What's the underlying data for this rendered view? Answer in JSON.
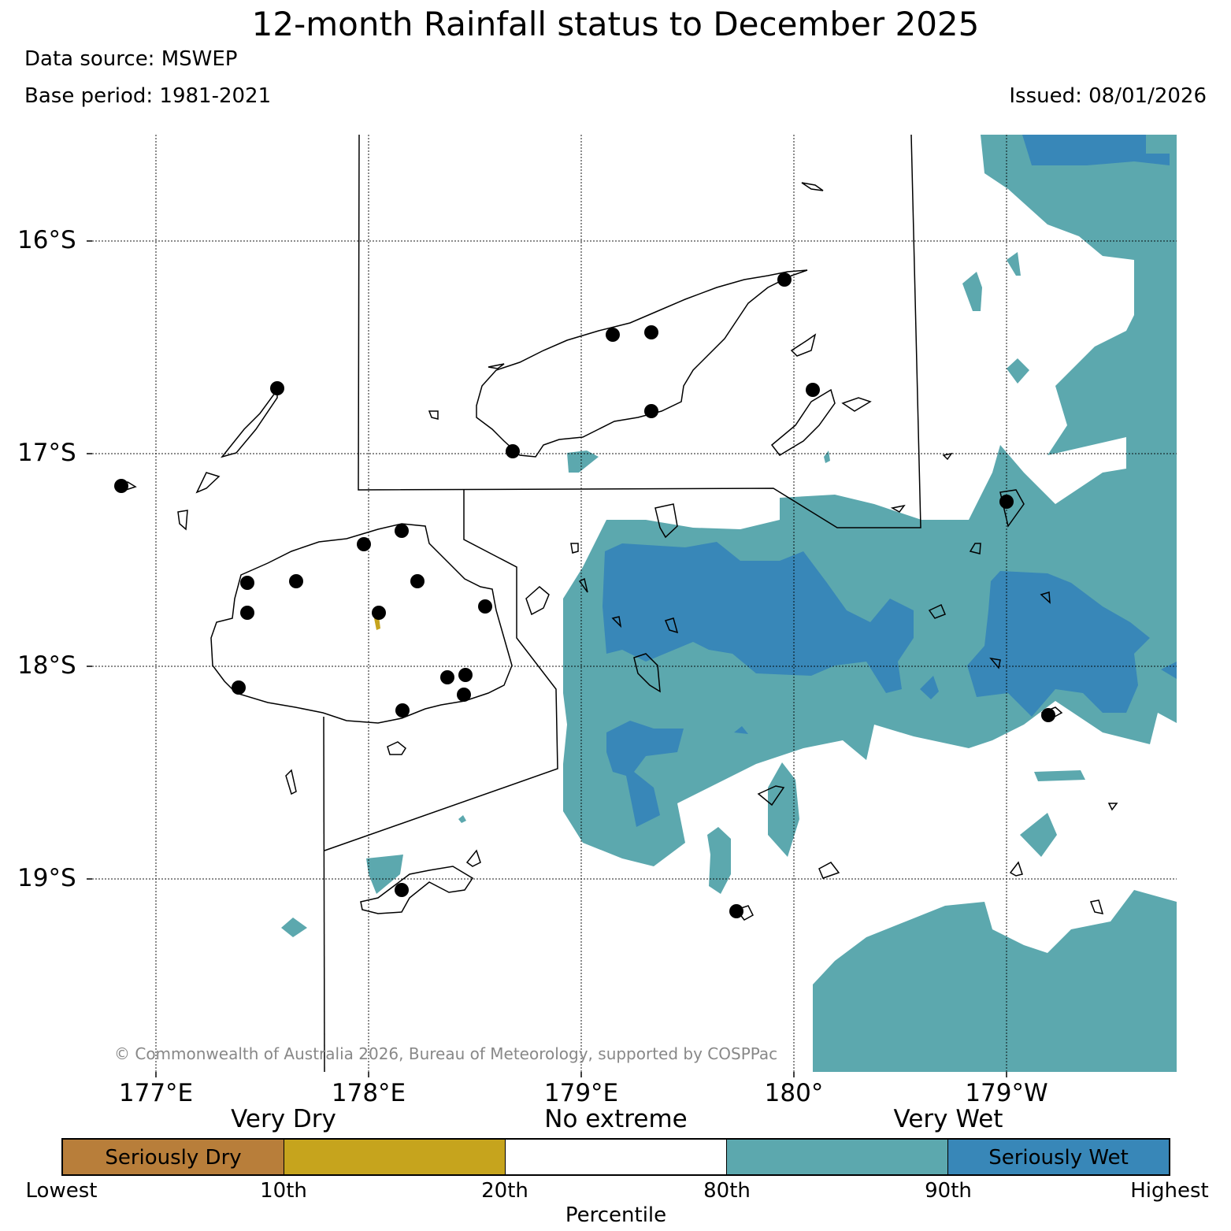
{
  "header": {
    "title": "12-month Rainfall status to December 2025",
    "data_source": "Data source: MSWEP",
    "base_period": "Base period: 1981-2021",
    "issued": "Issued: 08/01/2026"
  },
  "map": {
    "copyright": "© Commonwealth of Australia 2026, Bureau of Meteorology, supported by COSPPac",
    "lat_labels": [
      "16°S",
      "17°S",
      "18°S",
      "19°S"
    ],
    "lon_labels": [
      "177°E",
      "178°E",
      "179°E",
      "180°",
      "179°W"
    ],
    "colors": {
      "seriously_dry": "#b87e3a",
      "very_dry": "#c6a41d",
      "no_extreme": "#ffffff",
      "very_wet": "#5ca8ae",
      "seriously_wet": "#3887b8"
    }
  },
  "legend": {
    "category_labels": [
      "Very Dry",
      "No extreme",
      "Very Wet"
    ],
    "segments": [
      {
        "label": "Seriously Dry",
        "color": "#b87e3a"
      },
      {
        "label": "",
        "color": "#c6a41d"
      },
      {
        "label": "",
        "color": "#ffffff"
      },
      {
        "label": "",
        "color": "#5ca8ae"
      },
      {
        "label": "Seriously Wet",
        "color": "#3887b8"
      }
    ],
    "ticks": [
      "Lowest",
      "10th",
      "20th",
      "80th",
      "90th",
      "Highest"
    ],
    "axis_label": "Percentile"
  }
}
